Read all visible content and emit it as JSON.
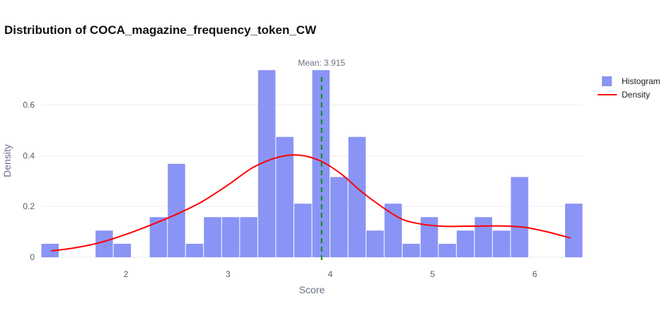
{
  "chart_data": {
    "type": "bar",
    "title": "Distribution of COCA_magazine_frequency_token_CW",
    "xlabel": "Score",
    "ylabel": "Density",
    "xlim": [
      1.17,
      6.47
    ],
    "ylim": [
      0,
      0.76
    ],
    "x_ticks": [
      2,
      3,
      4,
      5,
      6
    ],
    "y_ticks": [
      0,
      0.2,
      0.4,
      0.6
    ],
    "grid": "horizontal",
    "legend_position": "top-right",
    "colors": {
      "histogram": "#8a94f5",
      "density": "#ff0000",
      "mean_line": "#138a13"
    },
    "series": [
      {
        "name": "Histogram",
        "kind": "histogram",
        "bin_edges": [
          1.17,
          1.3467,
          1.5233,
          1.7,
          1.8767,
          2.0533,
          2.23,
          2.4067,
          2.5833,
          2.76,
          2.9367,
          3.1133,
          3.29,
          3.4667,
          3.6433,
          3.82,
          3.9967,
          4.1733,
          4.35,
          4.5267,
          4.7033,
          4.88,
          5.0567,
          5.2333,
          5.41,
          5.5867,
          5.7633,
          5.94,
          6.1167,
          6.2933,
          6.47
        ],
        "values": [
          0.053,
          0,
          0,
          0.105,
          0.053,
          0,
          0.158,
          0.368,
          0.053,
          0.158,
          0.158,
          0.158,
          0.737,
          0.474,
          0.211,
          0.737,
          0.316,
          0.474,
          0.105,
          0.211,
          0.053,
          0.158,
          0.053,
          0.105,
          0.158,
          0.105,
          0.316,
          0,
          0,
          0.211
        ]
      },
      {
        "name": "Density",
        "kind": "line",
        "x": [
          1.27,
          1.5,
          1.75,
          2.0,
          2.25,
          2.5,
          2.75,
          3.0,
          3.25,
          3.5,
          3.7,
          3.9,
          4.1,
          4.3,
          4.5,
          4.7,
          4.9,
          5.1,
          5.3,
          5.5,
          5.7,
          5.9,
          6.1,
          6.35
        ],
        "y": [
          0.025,
          0.037,
          0.058,
          0.09,
          0.128,
          0.17,
          0.22,
          0.285,
          0.355,
          0.395,
          0.402,
          0.38,
          0.33,
          0.26,
          0.2,
          0.15,
          0.13,
          0.122,
          0.122,
          0.123,
          0.123,
          0.118,
          0.102,
          0.076
        ]
      }
    ],
    "mean": 3.915,
    "annotations": [
      {
        "text": "Mean: 3.915",
        "x": 3.915
      }
    ]
  }
}
